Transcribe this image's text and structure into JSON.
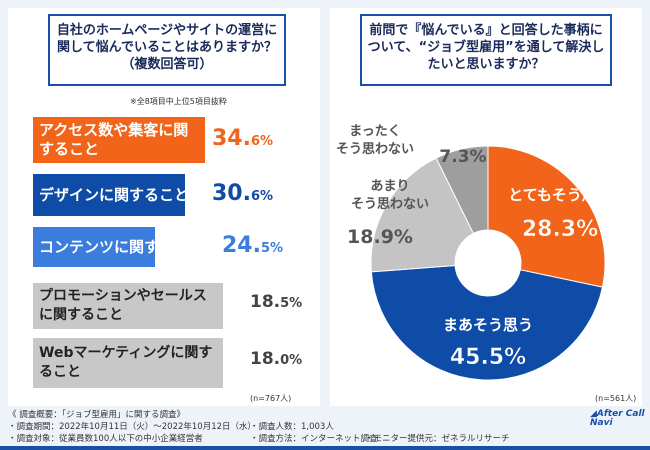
{
  "left": {
    "question": "自社のホームページやサイトの運営に関して悩んでいることはありますか？（複数回答可）",
    "note": "※全8項目中上位5項目抜粋",
    "n": "(n=767人)"
  },
  "right": {
    "question": "前問で『悩んでいる』と回答した事柄について、“ジョブ型雇用”を通して解決したいと思いますか？",
    "n": "(n=561人)"
  },
  "footer": {
    "title": "《 調査概要：「ジョブ型雇用」に関する調査》",
    "period": "・調査期間：2022年10月11日（火）～2022年10月12日（水）",
    "target": "・調査対象：従業員数100人以下の中小企業経営者",
    "count": "・調査人数：1,003人",
    "method": "・調査方法：インターネット調査",
    "provider": "・モニター提供元：ゼネラルリサーチ",
    "logo": "After Call Navi"
  },
  "chart_data": [
    {
      "type": "bar",
      "orientation": "horizontal",
      "categories": [
        "アクセス数や集客に関すること",
        "デザインに関すること",
        "コンテンツに関すること",
        "プロモーションやセールスに関すること",
        "Webマーケティングに関すること"
      ],
      "values": [
        34.6,
        30.6,
        24.5,
        18.5,
        18.0
      ],
      "unit": "%",
      "colors": [
        "#f26419",
        "#0f4ca8",
        "#3b7ddd",
        "#c8c8c8",
        "#c8c8c8"
      ]
    },
    {
      "type": "pie",
      "donut": true,
      "categories": [
        "とてもそう思う",
        "まあそう思う",
        "あまりそう思わない",
        "まったくそう思わない"
      ],
      "values": [
        28.3,
        45.5,
        18.9,
        7.3
      ],
      "unit": "%",
      "colors": [
        "#f26419",
        "#0f4ca8",
        "#c4c4c4",
        "#9e9e9e"
      ]
    }
  ]
}
